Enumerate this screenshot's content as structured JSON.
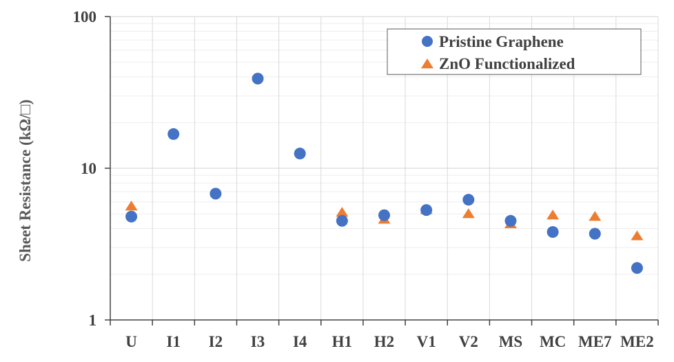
{
  "chart_data": {
    "type": "scatter",
    "categories": [
      "U",
      "I1",
      "I2",
      "I3",
      "I4",
      "H1",
      "H2",
      "V1",
      "V2",
      "MS",
      "MC",
      "ME7",
      "ME2"
    ],
    "ylabel": "Sheet Resistance (kΩ/□)",
    "xlabel": "",
    "yscale": "log",
    "ylim": [
      1,
      100
    ],
    "yticks": [
      "1",
      "10",
      "100"
    ],
    "grid": true,
    "legend_position": "top-right",
    "series": [
      {
        "name": "Pristine Graphene",
        "marker": "circle",
        "color": "#4472C4",
        "values": [
          4.8,
          16.8,
          6.8,
          39,
          12.5,
          4.5,
          4.9,
          5.3,
          6.2,
          4.5,
          3.8,
          3.7,
          2.2
        ]
      },
      {
        "name": "ZnO Functionalized",
        "marker": "triangle",
        "color": "#ED7D31",
        "values": [
          5.5,
          null,
          null,
          null,
          null,
          5.0,
          4.5,
          5.2,
          4.9,
          4.2,
          4.8,
          4.7,
          3.5
        ]
      }
    ]
  }
}
